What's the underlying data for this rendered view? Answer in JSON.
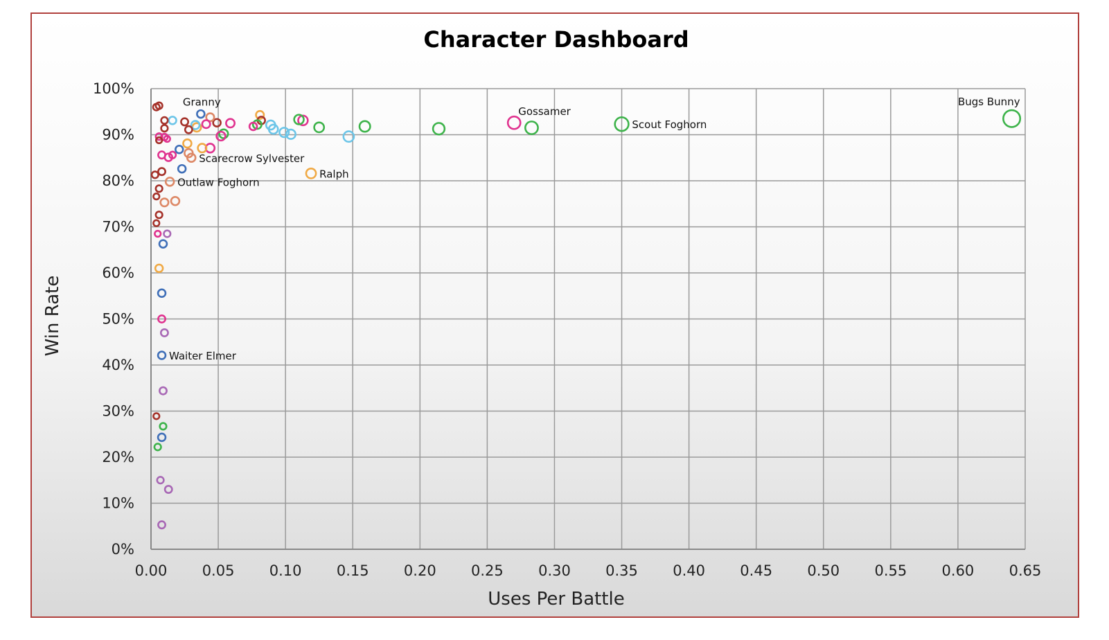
{
  "chart_data": {
    "type": "scatter",
    "title": "Character Dashboard",
    "xlabel": "Uses Per Battle",
    "ylabel": "Win Rate",
    "xlim": [
      0,
      0.65
    ],
    "ylim": [
      0,
      100
    ],
    "x_ticks": [
      "0.00",
      "0.05",
      "0.10",
      "0.15",
      "0.20",
      "0.25",
      "0.30",
      "0.35",
      "0.40",
      "0.45",
      "0.50",
      "0.55",
      "0.60",
      "0.65"
    ],
    "y_ticks": [
      "0%",
      "10%",
      "20%",
      "30%",
      "40%",
      "50%",
      "60%",
      "70%",
      "80%",
      "90%",
      "100%"
    ],
    "grid": true,
    "marker": "open-circle",
    "colors": {
      "dark_red": "#a5322a",
      "pink": "#e0338f",
      "blue": "#3f6fb8",
      "light_blue": "#6cc5e8",
      "green": "#3db34a",
      "orange": "#f0a944",
      "salmon": "#dd8866",
      "purple": "#a868b5",
      "frame": "#b0403d",
      "grid": "#9a9a9a"
    },
    "points": [
      {
        "x": 0.64,
        "y": 93.5,
        "s": 0.64,
        "c": "green",
        "label": "Bugs Bunny"
      },
      {
        "x": 0.35,
        "y": 92.3,
        "s": 0.35,
        "c": "green",
        "label": "Scout Foghorn"
      },
      {
        "x": 0.283,
        "y": 91.5,
        "s": 0.28,
        "c": "green"
      },
      {
        "x": 0.27,
        "y": 92.6,
        "s": 0.27,
        "c": "pink",
        "label": "Gossamer"
      },
      {
        "x": 0.214,
        "y": 91.3,
        "s": 0.21,
        "c": "green"
      },
      {
        "x": 0.159,
        "y": 91.8,
        "s": 0.16,
        "c": "green"
      },
      {
        "x": 0.147,
        "y": 89.6,
        "s": 0.15,
        "c": "light_blue"
      },
      {
        "x": 0.125,
        "y": 91.6,
        "s": 0.12,
        "c": "green"
      },
      {
        "x": 0.119,
        "y": 81.6,
        "s": 0.12,
        "c": "orange",
        "label": "Ralph"
      },
      {
        "x": 0.113,
        "y": 93.1,
        "s": 0.11,
        "c": "pink"
      },
      {
        "x": 0.11,
        "y": 93.3,
        "s": 0.11,
        "c": "green"
      },
      {
        "x": 0.104,
        "y": 90.1,
        "s": 0.1,
        "c": "light_blue"
      },
      {
        "x": 0.099,
        "y": 90.5,
        "s": 0.1,
        "c": "light_blue"
      },
      {
        "x": 0.091,
        "y": 91.2,
        "s": 0.09,
        "c": "light_blue"
      },
      {
        "x": 0.089,
        "y": 92.1,
        "s": 0.09,
        "c": "light_blue"
      },
      {
        "x": 0.081,
        "y": 94.3,
        "s": 0.05,
        "c": "orange"
      },
      {
        "x": 0.082,
        "y": 93.1,
        "s": 0.04,
        "c": "dark_red"
      },
      {
        "x": 0.079,
        "y": 92.2,
        "s": 0.07,
        "c": "green"
      },
      {
        "x": 0.076,
        "y": 91.8,
        "s": 0.04,
        "c": "pink"
      },
      {
        "x": 0.059,
        "y": 92.5,
        "s": 0.07,
        "c": "pink"
      },
      {
        "x": 0.054,
        "y": 90.2,
        "s": 0.08,
        "c": "green"
      },
      {
        "x": 0.052,
        "y": 89.7,
        "s": 0.08,
        "c": "pink"
      },
      {
        "x": 0.049,
        "y": 92.6,
        "s": 0.04,
        "c": "dark_red"
      },
      {
        "x": 0.044,
        "y": 93.8,
        "s": 0.05,
        "c": "salmon"
      },
      {
        "x": 0.044,
        "y": 87.1,
        "s": 0.08,
        "c": "pink"
      },
      {
        "x": 0.041,
        "y": 92.3,
        "s": 0.05,
        "c": "pink"
      },
      {
        "x": 0.037,
        "y": 94.5,
        "s": 0.04,
        "c": "blue",
        "label": "Granny"
      },
      {
        "x": 0.038,
        "y": 87.1,
        "s": 0.07,
        "c": "orange"
      },
      {
        "x": 0.034,
        "y": 91.6,
        "s": 0.07,
        "c": "orange"
      },
      {
        "x": 0.033,
        "y": 92.1,
        "s": 0.06,
        "c": "light_blue"
      },
      {
        "x": 0.028,
        "y": 91.1,
        "s": 0.03,
        "c": "dark_red"
      },
      {
        "x": 0.025,
        "y": 92.8,
        "s": 0.03,
        "c": "dark_red"
      },
      {
        "x": 0.016,
        "y": 93.1,
        "s": 0.04,
        "c": "light_blue"
      },
      {
        "x": 0.027,
        "y": 88.1,
        "s": 0.06,
        "c": "orange"
      },
      {
        "x": 0.028,
        "y": 86.0,
        "s": 0.06,
        "c": "salmon"
      },
      {
        "x": 0.03,
        "y": 85.0,
        "s": 0.06,
        "c": "salmon",
        "label": "Scarecrow Sylvester"
      },
      {
        "x": 0.021,
        "y": 86.8,
        "s": 0.04,
        "c": "blue"
      },
      {
        "x": 0.016,
        "y": 85.6,
        "s": 0.02,
        "c": "pink"
      },
      {
        "x": 0.013,
        "y": 85.1,
        "s": 0.04,
        "c": "pink"
      },
      {
        "x": 0.008,
        "y": 85.6,
        "s": 0.03,
        "c": "pink"
      },
      {
        "x": 0.023,
        "y": 82.6,
        "s": 0.04,
        "c": "blue"
      },
      {
        "x": 0.004,
        "y": 96.0,
        "s": 0.02,
        "c": "dark_red"
      },
      {
        "x": 0.006,
        "y": 96.3,
        "s": 0.02,
        "c": "dark_red"
      },
      {
        "x": 0.01,
        "y": 93.1,
        "s": 0.02,
        "c": "dark_red"
      },
      {
        "x": 0.01,
        "y": 91.4,
        "s": 0.02,
        "c": "dark_red"
      },
      {
        "x": 0.006,
        "y": 89.6,
        "s": 0.02,
        "c": "pink"
      },
      {
        "x": 0.01,
        "y": 89.5,
        "s": 0.02,
        "c": "pink"
      },
      {
        "x": 0.012,
        "y": 89.1,
        "s": 0.01,
        "c": "pink"
      },
      {
        "x": 0.006,
        "y": 88.8,
        "s": 0.01,
        "c": "dark_red"
      },
      {
        "x": 0.003,
        "y": 81.3,
        "s": 0.02,
        "c": "dark_red"
      },
      {
        "x": 0.008,
        "y": 82.0,
        "s": 0.03,
        "c": "dark_red"
      },
      {
        "x": 0.014,
        "y": 79.8,
        "s": 0.06,
        "c": "salmon",
        "label": "Outlaw Foghorn"
      },
      {
        "x": 0.006,
        "y": 78.3,
        "s": 0.02,
        "c": "dark_red"
      },
      {
        "x": 0.004,
        "y": 76.6,
        "s": 0.01,
        "c": "dark_red"
      },
      {
        "x": 0.01,
        "y": 75.3,
        "s": 0.05,
        "c": "salmon"
      },
      {
        "x": 0.018,
        "y": 75.6,
        "s": 0.06,
        "c": "salmon"
      },
      {
        "x": 0.006,
        "y": 72.6,
        "s": 0.02,
        "c": "dark_red"
      },
      {
        "x": 0.004,
        "y": 70.8,
        "s": 0.01,
        "c": "dark_red"
      },
      {
        "x": 0.005,
        "y": 68.5,
        "s": 0.01,
        "c": "pink"
      },
      {
        "x": 0.012,
        "y": 68.5,
        "s": 0.02,
        "c": "purple"
      },
      {
        "x": 0.009,
        "y": 66.3,
        "s": 0.04,
        "c": "blue"
      },
      {
        "x": 0.006,
        "y": 61.0,
        "s": 0.04,
        "c": "orange"
      },
      {
        "x": 0.008,
        "y": 55.6,
        "s": 0.04,
        "c": "blue"
      },
      {
        "x": 0.008,
        "y": 50.0,
        "s": 0.03,
        "c": "pink"
      },
      {
        "x": 0.01,
        "y": 47.0,
        "s": 0.03,
        "c": "purple"
      },
      {
        "x": 0.008,
        "y": 42.1,
        "s": 0.04,
        "c": "blue",
        "label": "Waiter Elmer"
      },
      {
        "x": 0.009,
        "y": 34.4,
        "s": 0.03,
        "c": "purple"
      },
      {
        "x": 0.004,
        "y": 28.9,
        "s": 0.01,
        "c": "dark_red"
      },
      {
        "x": 0.009,
        "y": 26.7,
        "s": 0.02,
        "c": "green"
      },
      {
        "x": 0.008,
        "y": 24.3,
        "s": 0.04,
        "c": "blue"
      },
      {
        "x": 0.005,
        "y": 22.2,
        "s": 0.02,
        "c": "green"
      },
      {
        "x": 0.007,
        "y": 15.0,
        "s": 0.02,
        "c": "purple"
      },
      {
        "x": 0.013,
        "y": 13.0,
        "s": 0.03,
        "c": "purple"
      },
      {
        "x": 0.008,
        "y": 5.3,
        "s": 0.03,
        "c": "purple"
      }
    ]
  }
}
